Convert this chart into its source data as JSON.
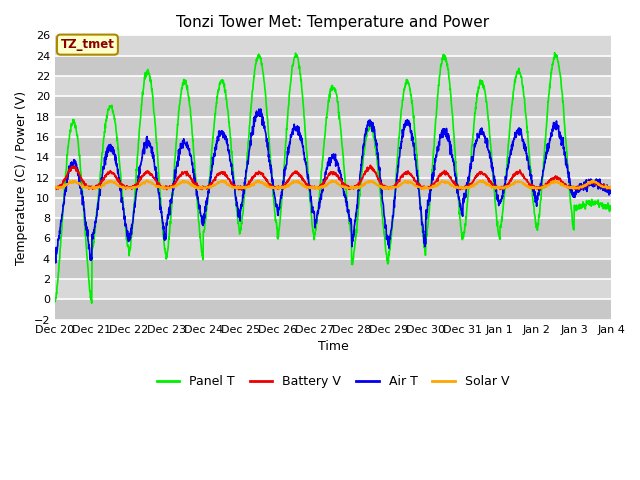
{
  "title": "Tonzi Tower Met: Temperature and Power",
  "xlabel": "Time",
  "ylabel": "Temperature (C) / Power (V)",
  "ylim": [
    -2,
    26
  ],
  "yticks": [
    -2,
    0,
    2,
    4,
    6,
    8,
    10,
    12,
    14,
    16,
    18,
    20,
    22,
    24,
    26
  ],
  "x_labels": [
    "Dec 20",
    "Dec 21",
    "Dec 22",
    "Dec 23",
    "Dec 24",
    "Dec 25",
    "Dec 26",
    "Dec 27",
    "Dec 28",
    "Dec 29",
    "Dec 30",
    "Dec 31",
    "Jan 1",
    "Jan 2",
    "Jan 3",
    "Jan 4"
  ],
  "num_days": 15,
  "panel_t_color": "#00EE00",
  "battery_v_color": "#EE0000",
  "air_t_color": "#0000EE",
  "solar_v_color": "#FFA500",
  "fig_bg_color": "#FFFFFF",
  "plot_bg_color": "#D8D8D8",
  "annotation_text": "TZ_tmet",
  "annotation_facecolor": "#FFFFCC",
  "annotation_edgecolor": "#AA8800",
  "linewidth": 1.2,
  "grid_color": "#FFFFFF",
  "grid_linewidth": 1.2,
  "title_fontsize": 11,
  "axis_fontsize": 9,
  "tick_fontsize": 8
}
